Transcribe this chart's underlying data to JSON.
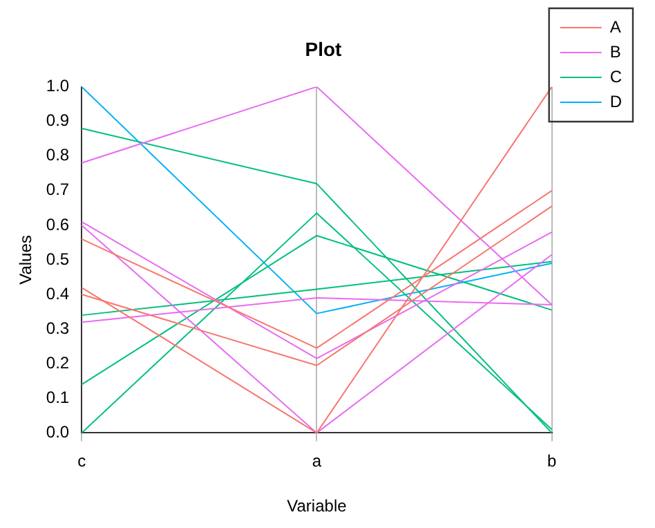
{
  "chart_data": {
    "type": "line",
    "title": "Plot",
    "xlabel": "Variable",
    "ylabel": "Values",
    "categories": [
      "c",
      "a",
      "b"
    ],
    "series": [
      {
        "name": "A",
        "color": "#f8766d",
        "values": [
          0.56,
          0.245,
          0.7
        ]
      },
      {
        "color": "#f8766d",
        "values": [
          0.42,
          0.0,
          1.0
        ]
      },
      {
        "color": "#f8766d",
        "values": [
          0.4,
          0.195,
          0.655
        ]
      },
      {
        "name": "B",
        "color": "#e76bf3",
        "values": [
          0.78,
          1.0,
          0.37
        ]
      },
      {
        "color": "#e76bf3",
        "values": [
          0.61,
          0.215,
          0.58
        ]
      },
      {
        "color": "#e76bf3",
        "values": [
          0.6,
          0.0,
          0.515
        ]
      },
      {
        "color": "#e76bf3",
        "values": [
          0.32,
          0.39,
          0.37
        ]
      },
      {
        "name": "C",
        "color": "#00bf7d",
        "values": [
          0.88,
          0.72,
          0.0
        ]
      },
      {
        "color": "#00bf7d",
        "values": [
          0.34,
          0.415,
          0.495
        ]
      },
      {
        "color": "#00bf7d",
        "values": [
          0.14,
          0.57,
          0.355
        ]
      },
      {
        "color": "#00bf7d",
        "values": [
          0.0,
          0.635,
          0.01
        ]
      },
      {
        "name": "D",
        "color": "#00b0f6",
        "values": [
          1.0,
          0.345,
          0.49
        ]
      }
    ],
    "ylim": [
      0,
      1
    ],
    "yticks": [
      {
        "value": 0,
        "label": "0.0"
      },
      0.1,
      0.2,
      0.3,
      0.4,
      0.5,
      0.6,
      0.7,
      0.8,
      0.9,
      {
        "value": 1,
        "label": "1.0"
      }
    ],
    "grid": "x",
    "legend": "right",
    "marker": "none"
  }
}
